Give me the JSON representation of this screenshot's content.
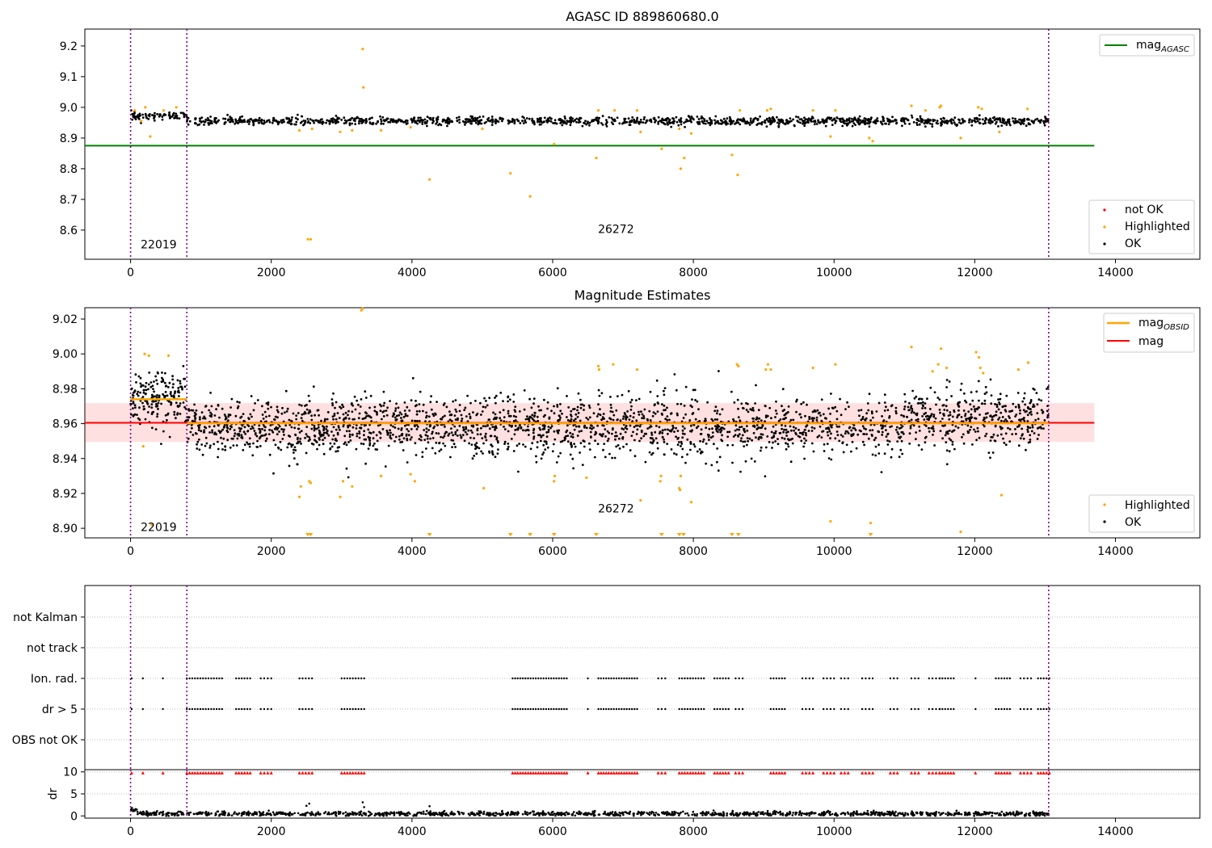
{
  "chart_data": [
    {
      "id": "agasc",
      "type": "scatter",
      "title": "AGASC ID 889860680.0",
      "xlim": [
        -650,
        15200
      ],
      "ylim": [
        8.505,
        9.255
      ],
      "xticks": [
        0,
        2000,
        4000,
        6000,
        8000,
        10000,
        12000,
        14000
      ],
      "yticks": [
        8.6,
        8.7,
        8.8,
        8.9,
        9.0,
        9.1,
        9.2
      ],
      "obsid_boundaries": [
        0,
        800,
        13050
      ],
      "obsid_labels": [
        {
          "text": "22019",
          "x": 400,
          "y": 8.54
        },
        {
          "text": "26272",
          "x": 6900,
          "y": 8.59
        }
      ],
      "mag_agasc": 8.875,
      "mag_agasc_x_range": [
        -650,
        13700
      ],
      "series": [
        {
          "name": "OK",
          "color": "#000000",
          "base": 8.955,
          "spread": 0.011,
          "n": 1400
        },
        {
          "name": "Highlighted",
          "color": "#ffa500"
        },
        {
          "name": "not OK",
          "color": "#ff0000"
        }
      ],
      "highlighted_points": [
        [
          60,
          8.99
        ],
        [
          150,
          8.955
        ],
        [
          210,
          9.0
        ],
        [
          280,
          8.905
        ],
        [
          470,
          8.99
        ],
        [
          650,
          9.0
        ],
        [
          2400,
          8.925
        ],
        [
          2520,
          8.57
        ],
        [
          2560,
          8.57
        ],
        [
          2580,
          8.93
        ],
        [
          2980,
          8.92
        ],
        [
          3150,
          8.925
        ],
        [
          3300,
          9.19
        ],
        [
          3310,
          9.065
        ],
        [
          3560,
          8.925
        ],
        [
          3980,
          8.935
        ],
        [
          4250,
          8.765
        ],
        [
          5000,
          8.93
        ],
        [
          5400,
          8.785
        ],
        [
          5680,
          8.71
        ],
        [
          6020,
          8.88
        ],
        [
          6620,
          8.835
        ],
        [
          6650,
          8.99
        ],
        [
          6880,
          8.99
        ],
        [
          7200,
          8.99
        ],
        [
          7250,
          8.92
        ],
        [
          7550,
          8.865
        ],
        [
          7800,
          8.93
        ],
        [
          7820,
          8.8
        ],
        [
          7870,
          8.835
        ],
        [
          7970,
          8.915
        ],
        [
          8550,
          8.845
        ],
        [
          8630,
          8.78
        ],
        [
          8660,
          8.99
        ],
        [
          9050,
          8.99
        ],
        [
          9100,
          8.995
        ],
        [
          9700,
          8.99
        ],
        [
          9950,
          8.905
        ],
        [
          10020,
          8.99
        ],
        [
          10500,
          8.9
        ],
        [
          10550,
          8.89
        ],
        [
          11100,
          9.005
        ],
        [
          11300,
          8.99
        ],
        [
          11500,
          9.0
        ],
        [
          11520,
          9.005
        ],
        [
          11800,
          8.9
        ],
        [
          12050,
          9.0
        ],
        [
          12100,
          8.995
        ],
        [
          12350,
          8.92
        ],
        [
          12750,
          8.995
        ]
      ],
      "legend": {
        "lines": [
          "mag$_{AGASC}$"
        ],
        "points": [
          "not OK",
          "Highlighted",
          "OK"
        ]
      }
    },
    {
      "id": "estimates",
      "type": "scatter",
      "title": "Magnitude Estimates",
      "xlim": [
        -650,
        15200
      ],
      "ylim": [
        8.8945,
        9.0265
      ],
      "xticks": [
        0,
        2000,
        4000,
        6000,
        8000,
        10000,
        12000,
        14000
      ],
      "yticks": [
        8.9,
        8.92,
        8.94,
        8.96,
        8.98,
        9.0,
        9.02
      ],
      "obsid_boundaries": [
        0,
        800,
        13050
      ],
      "obsid_labels": [
        {
          "text": "22019",
          "x": 400,
          "y": 8.8985
        },
        {
          "text": "26272",
          "x": 6900,
          "y": 8.909
        }
      ],
      "mag": 8.9605,
      "mag_band": [
        8.9495,
        8.9718
      ],
      "mag_x_range": [
        -650,
        13700
      ],
      "mag_obsid": [
        {
          "x": [
            0,
            800
          ],
          "value": 8.974
        },
        {
          "x": [
            800,
            13050
          ],
          "value": 8.9602
        }
      ],
      "series": [
        {
          "name": "OK",
          "color": "#000000",
          "n": 2600
        },
        {
          "name": "Highlighted",
          "color": "#ffa500"
        }
      ],
      "highlighted_points": [
        [
          180,
          8.947
        ],
        [
          200,
          9.0
        ],
        [
          260,
          8.999
        ],
        [
          300,
          8.902
        ],
        [
          540,
          8.999
        ],
        [
          3280,
          9.025
        ],
        [
          3300,
          9.026
        ],
        [
          2400,
          8.918
        ],
        [
          2420,
          8.924
        ],
        [
          2540,
          8.927
        ],
        [
          2560,
          8.926
        ],
        [
          2980,
          8.918
        ],
        [
          3020,
          8.927
        ],
        [
          3150,
          8.924
        ],
        [
          3560,
          8.93
        ],
        [
          3980,
          8.931
        ],
        [
          4040,
          8.927
        ],
        [
          5020,
          8.923
        ],
        [
          6020,
          8.927
        ],
        [
          6030,
          8.93
        ],
        [
          6480,
          8.929
        ],
        [
          6650,
          8.993
        ],
        [
          6660,
          8.991
        ],
        [
          6860,
          8.994
        ],
        [
          7200,
          8.991
        ],
        [
          7250,
          8.916
        ],
        [
          7530,
          8.927
        ],
        [
          7540,
          8.93
        ],
        [
          7800,
          8.923
        ],
        [
          7820,
          8.93
        ],
        [
          7810,
          8.922
        ],
        [
          7970,
          8.915
        ],
        [
          8620,
          8.994
        ],
        [
          8640,
          8.993
        ],
        [
          9030,
          8.991
        ],
        [
          9060,
          8.994
        ],
        [
          9100,
          8.991
        ],
        [
          9700,
          8.992
        ],
        [
          9950,
          8.904
        ],
        [
          10020,
          8.994
        ],
        [
          10520,
          8.903
        ],
        [
          11100,
          9.004
        ],
        [
          11400,
          8.99
        ],
        [
          11480,
          8.994
        ],
        [
          11520,
          9.003
        ],
        [
          11600,
          8.992
        ],
        [
          11800,
          8.898
        ],
        [
          12020,
          9.001
        ],
        [
          12060,
          8.998
        ],
        [
          12080,
          8.992
        ],
        [
          12120,
          8.989
        ],
        [
          12380,
          8.919
        ],
        [
          12620,
          8.991
        ],
        [
          12760,
          8.995
        ]
      ],
      "clipped_low_x": [
        2520,
        2560,
        4250,
        5400,
        5680,
        6020,
        6620,
        7550,
        7800,
        7860,
        8550,
        8640,
        10520
      ],
      "legend": {
        "lines": [
          "mag$_{OBSID}$",
          "mag"
        ],
        "points": [
          "Highlighted",
          "OK"
        ]
      }
    },
    {
      "id": "flags",
      "type": "scatter",
      "xlim": [
        -650,
        15200
      ],
      "categories": [
        "not Kalman",
        "not track",
        "Ion. rad.",
        "dr > 5",
        "OBS not OK"
      ],
      "obsid_boundaries": [
        0,
        800,
        13050
      ],
      "flag_ranges": [
        [
          0,
          30
        ],
        [
          170,
          180
        ],
        [
          440,
          480
        ],
        [
          800,
          1300
        ],
        [
          1500,
          1700
        ],
        [
          1850,
          2000
        ],
        [
          2400,
          2580
        ],
        [
          3000,
          3320
        ],
        [
          5430,
          6200
        ],
        [
          6480,
          6520
        ],
        [
          6650,
          7200
        ],
        [
          7500,
          7600
        ],
        [
          7800,
          8150
        ],
        [
          8300,
          8500
        ],
        [
          8600,
          8700
        ],
        [
          9100,
          9300
        ],
        [
          9550,
          9700
        ],
        [
          9850,
          10000
        ],
        [
          10100,
          10200
        ],
        [
          10400,
          10550
        ],
        [
          10800,
          10900
        ],
        [
          11100,
          11200
        ],
        [
          11350,
          11500
        ],
        [
          11500,
          11700
        ],
        [
          12000,
          12020
        ],
        [
          12300,
          12500
        ],
        [
          12650,
          12800
        ],
        [
          12900,
          13060
        ]
      ],
      "flag_rows": [
        "Ion. rad.",
        "dr > 5"
      ]
    },
    {
      "id": "dr",
      "type": "scatter",
      "xlim": [
        -650,
        15200
      ],
      "ylim": [
        -0.5,
        10.5
      ],
      "ylabel": "dr",
      "yticks": [
        0,
        5,
        10
      ],
      "obsid_boundaries": [
        0,
        800,
        13050
      ],
      "extra_points": [
        [
          2500,
          2.3
        ],
        [
          2540,
          2.8
        ],
        [
          3300,
          3.1
        ],
        [
          3320,
          2.0
        ],
        [
          4250,
          2.2
        ],
        [
          20,
          1.8
        ]
      ]
    }
  ]
}
